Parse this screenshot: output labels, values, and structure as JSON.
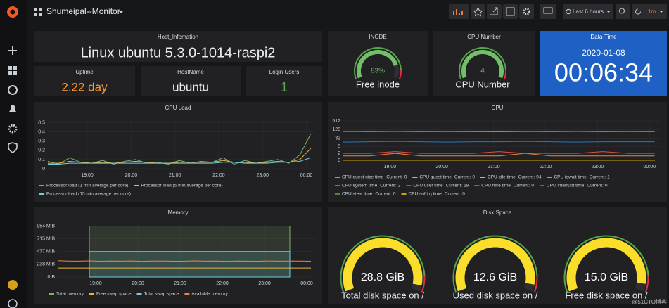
{
  "header": {
    "title": "Shumeipal--Monitor",
    "time_range": "Last 6 hours",
    "refresh": "1m"
  },
  "panels": {
    "host": {
      "title": "Host_Infomation",
      "value": "Linux ubuntu 5.3.0-1014-raspi2"
    },
    "uptime": {
      "title": "Uptime",
      "value": "2.22 day"
    },
    "hostname": {
      "title": "HostName",
      "value": "ubuntu"
    },
    "login": {
      "title": "Login Users",
      "value": "1"
    },
    "datetime": {
      "title": "Data-Time",
      "date": "2020-01-08",
      "time": "00:06:34"
    }
  },
  "chart_data": [
    {
      "type": "gauge",
      "title": "INODE",
      "ranges": [
        [
          0,
          100
        ]
      ],
      "values": [
        83
      ],
      "value_labels": [
        "83%"
      ],
      "labels": [
        "Free inode"
      ],
      "color": "#73bf69"
    },
    {
      "type": "gauge",
      "title": "CPU Number",
      "ranges": [
        [
          0,
          4
        ]
      ],
      "values": [
        4
      ],
      "labels": [
        "CPU Number"
      ],
      "color": "#73bf69"
    },
    {
      "type": "line",
      "title": "CPU Load",
      "x": [
        18.1,
        18.35,
        18.6,
        18.85,
        19.1,
        19.35,
        19.6,
        19.85,
        20.1,
        20.35,
        20.6,
        20.85,
        21.1,
        21.35,
        21.6,
        21.85,
        22.1,
        22.35,
        22.6,
        22.85,
        23.1,
        23.35,
        23.6,
        23.85,
        24.1
      ],
      "xlim": [
        18.1,
        24.2
      ],
      "xticks": [
        {
          "value": 19,
          "label": "19:00"
        },
        {
          "value": 20,
          "label": "20:00"
        },
        {
          "value": 21,
          "label": "21:00"
        },
        {
          "value": 22,
          "label": "22:00"
        },
        {
          "value": 23,
          "label": "23:00"
        },
        {
          "value": 24,
          "label": "00:00"
        }
      ],
      "ylim": [
        0,
        0.55
      ],
      "yticks": [
        0,
        0.1,
        0.2,
        0.3,
        0.4,
        0.5
      ],
      "grid": true,
      "series": [
        {
          "name": "Processor load (1 min average per core)",
          "color": "#7eb26d",
          "values": [
            0.08,
            0.05,
            0.12,
            0.07,
            0.06,
            0.09,
            0.05,
            0.08,
            0.1,
            0.06,
            0.07,
            0.05,
            0.09,
            0.06,
            0.08,
            0.07,
            0.12,
            0.05,
            0.09,
            0.06,
            0.08,
            0.1,
            0.06,
            0.15,
            0.38
          ]
        },
        {
          "name": "Processor load (5 min average per core)",
          "color": "#eab839",
          "values": [
            0.06,
            0.06,
            0.08,
            0.07,
            0.06,
            0.07,
            0.06,
            0.07,
            0.08,
            0.07,
            0.06,
            0.06,
            0.07,
            0.07,
            0.07,
            0.07,
            0.09,
            0.07,
            0.07,
            0.06,
            0.07,
            0.08,
            0.07,
            0.1,
            0.22
          ]
        },
        {
          "name": "Processor load (15 min average per core)",
          "color": "#6ed0e0",
          "values": [
            0.05,
            0.05,
            0.06,
            0.06,
            0.06,
            0.06,
            0.06,
            0.06,
            0.06,
            0.06,
            0.06,
            0.06,
            0.06,
            0.06,
            0.06,
            0.06,
            0.07,
            0.07,
            0.06,
            0.06,
            0.06,
            0.07,
            0.07,
            0.08,
            0.12
          ]
        }
      ]
    },
    {
      "type": "line",
      "title": "CPU",
      "yscale": "log2",
      "legend_stat": "Current:",
      "x": [
        18.1,
        18.6,
        19.1,
        19.6,
        20.1,
        20.6,
        21.1,
        21.6,
        22.1,
        22.6,
        23.1,
        23.6,
        24.1
      ],
      "xlim": [
        18.1,
        24.2
      ],
      "xticks": [
        {
          "value": 19,
          "label": "19:00"
        },
        {
          "value": 20,
          "label": "20:00"
        },
        {
          "value": 21,
          "label": "21:00"
        },
        {
          "value": 22,
          "label": "22:00"
        },
        {
          "value": 23,
          "label": "23:00"
        },
        {
          "value": 24,
          "label": "00:00"
        }
      ],
      "ylim": [
        0,
        512
      ],
      "yticks": [
        0,
        2,
        8,
        32,
        128,
        512
      ],
      "grid": true,
      "series": [
        {
          "name": "CPU guest nice time",
          "color": "#7eb26d",
          "current": 0,
          "values": [
            0,
            0,
            0,
            0,
            0,
            0,
            0,
            0,
            0,
            0,
            0,
            0,
            0
          ]
        },
        {
          "name": "CPU guest time",
          "color": "#eab839",
          "current": 0,
          "values": [
            0,
            0,
            0,
            0,
            0,
            0,
            0,
            0,
            0,
            0,
            0,
            0,
            0
          ]
        },
        {
          "name": "CPU idle time",
          "color": "#6ed0e0",
          "current": 94,
          "values": [
            95,
            94,
            96,
            94,
            95,
            94,
            93,
            95,
            94,
            96,
            94,
            95,
            94
          ]
        },
        {
          "name": "CPU iowait time",
          "color": "#ef843c",
          "current": 1,
          "values": [
            1,
            1,
            2,
            1,
            1,
            1,
            1,
            2,
            1,
            1,
            1,
            1,
            1
          ]
        },
        {
          "name": "CPU system time",
          "color": "#e24d42",
          "current": 2,
          "values": [
            2,
            2,
            3,
            2,
            2,
            2,
            3,
            2,
            2,
            2,
            3,
            2,
            2
          ]
        },
        {
          "name": "CPU user time",
          "color": "#1f78c1",
          "current": 18,
          "values": [
            17,
            18,
            19,
            18,
            17,
            18,
            18,
            19,
            18,
            17,
            18,
            18,
            18
          ]
        },
        {
          "name": "CPU nice time",
          "color": "#ba43a9",
          "current": 0,
          "values": [
            0,
            0,
            0,
            0,
            0,
            0,
            0,
            0,
            0,
            0,
            0,
            0,
            0
          ]
        },
        {
          "name": "CPU interrupt time",
          "color": "#705da0",
          "current": 0,
          "values": [
            0,
            0,
            0,
            0,
            0,
            0,
            0,
            0,
            0,
            0,
            0,
            0,
            0
          ]
        },
        {
          "name": "CPU steal time",
          "color": "#508642",
          "current": 0,
          "values": [
            0,
            0,
            0,
            0,
            0,
            0,
            0,
            0,
            0,
            0,
            0,
            0,
            0
          ]
        },
        {
          "name": "CPU softirq time",
          "color": "#cca300",
          "current": 0,
          "values": [
            0,
            0,
            0,
            0,
            0,
            0,
            0,
            0,
            0,
            0,
            0,
            0,
            0
          ]
        }
      ]
    },
    {
      "type": "line",
      "title": "Memory",
      "x": [
        18.1,
        18.35,
        18.6,
        18.85,
        19.1,
        19.35,
        19.6,
        19.85,
        20.1,
        20.35,
        20.6,
        20.85,
        21.1,
        21.35,
        21.6,
        21.85,
        22.1,
        22.35,
        22.6,
        22.85,
        23.1,
        23.35,
        23.6,
        23.85,
        24.1
      ],
      "xlim": [
        18.1,
        24.2
      ],
      "xticks": [
        {
          "value": 19,
          "label": "19:00"
        },
        {
          "value": 20,
          "label": "20:00"
        },
        {
          "value": 21,
          "label": "21:00"
        },
        {
          "value": 22,
          "label": "22:00"
        },
        {
          "value": 23,
          "label": "23:00"
        },
        {
          "value": 24,
          "label": "00:00"
        }
      ],
      "ylim": [
        0,
        1000
      ],
      "yticks": [
        {
          "value": 0,
          "label": "0 B"
        },
        {
          "value": 238.4,
          "label": "238 MiB"
        },
        {
          "value": 476.8,
          "label": "477 MiB"
        },
        {
          "value": 715.3,
          "label": "715 MiB"
        },
        {
          "value": 953.7,
          "label": "954 MiB"
        }
      ],
      "grid": true,
      "series": [
        {
          "name": "Total memory",
          "color": "#7eb26d",
          "area": true,
          "values": [
            null,
            null,
            null,
            953.7,
            953.7,
            953.7,
            953.7,
            953.7,
            953.7,
            953.7,
            953.7,
            953.7,
            953.7,
            953.7,
            953.7,
            953.7,
            953.7,
            953.7,
            953.7,
            953.7,
            953.7,
            953.7,
            953.7,
            null,
            null
          ]
        },
        {
          "name": "Free swap space",
          "color": "#eab839",
          "values": [
            170,
            170,
            170,
            170,
            170,
            170,
            170,
            170,
            170,
            170,
            170,
            170,
            170,
            170,
            170,
            170,
            170,
            170,
            170,
            170,
            170,
            170,
            170,
            170,
            170
          ]
        },
        {
          "name": "Total swap space",
          "color": "#6ed0e0",
          "area": true,
          "values": [
            null,
            null,
            null,
            476.8,
            476.8,
            476.8,
            476.8,
            476.8,
            476.8,
            476.8,
            476.8,
            476.8,
            476.8,
            476.8,
            476.8,
            476.8,
            476.8,
            476.8,
            476.8,
            476.8,
            476.8,
            476.8,
            476.8,
            null,
            null
          ]
        },
        {
          "name": "Available memory",
          "color": "#ef843c",
          "values": [
            305,
            300,
            298,
            302,
            296,
            300,
            297,
            301,
            295,
            299,
            300,
            296,
            298,
            302,
            297,
            299,
            295,
            300,
            298,
            296,
            301,
            297,
            299,
            300,
            296
          ]
        }
      ]
    },
    {
      "type": "gauge",
      "title": "Disk Space",
      "ranges": [
        [
          0,
          30
        ],
        [
          0,
          13.2
        ],
        [
          0,
          15.8
        ]
      ],
      "values": [
        28.8,
        12.6,
        15.0
      ],
      "value_labels": [
        "28.8 GiB",
        "12.6 GiB",
        "15.0 GiB"
      ],
      "labels": [
        "Total disk space on /",
        "Used disk space on /",
        "Free disk space on /"
      ],
      "color": "#fade2a"
    }
  ],
  "watermark": "@51CTO博客"
}
